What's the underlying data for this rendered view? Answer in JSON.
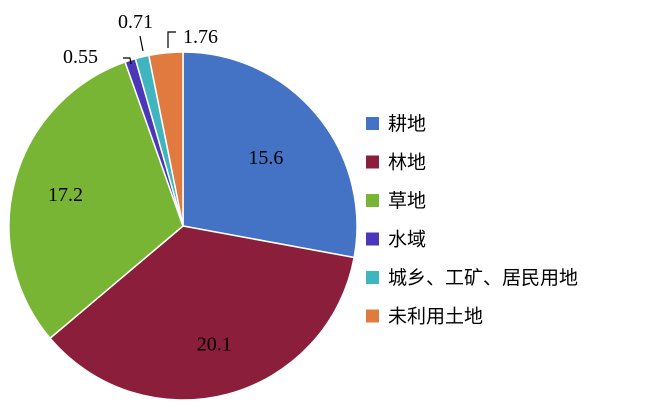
{
  "chart_data": {
    "type": "pie",
    "title": "",
    "categories": [
      "耕地",
      "林地",
      "草地",
      "水域",
      "城乡、工矿、居民用地",
      "未利用土地"
    ],
    "values": [
      15.6,
      20.1,
      17.2,
      0.55,
      0.71,
      1.76
    ],
    "value_labels": [
      "15.6",
      "20.1",
      "17.2",
      "0.55",
      "0.71",
      "1.76"
    ],
    "colors": [
      "#4472C4",
      "#8B1E3A",
      "#78B535",
      "#4B37B7",
      "#3FB5BF",
      "#E07A3F"
    ],
    "start": "12 o'clock, clockwise",
    "legend_position": "right"
  }
}
